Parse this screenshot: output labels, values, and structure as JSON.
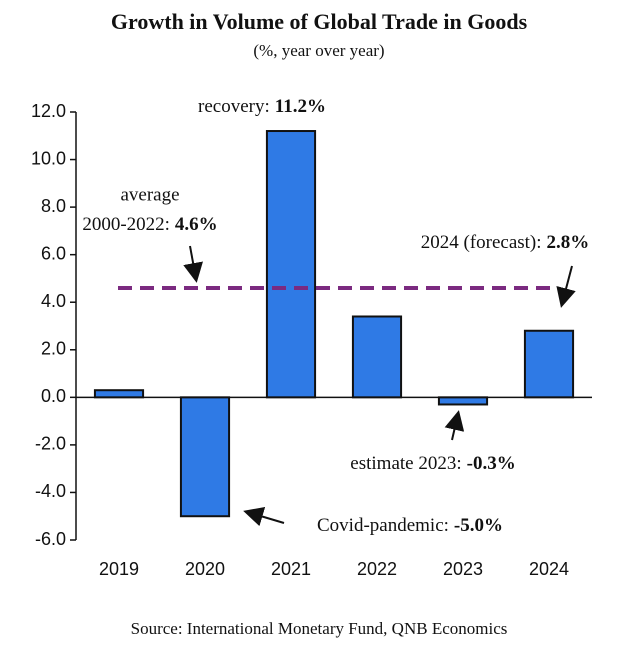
{
  "chart_data": {
    "type": "bar",
    "title": "Growth in Volume of Global Trade in Goods",
    "subtitle": "(%, year over year)",
    "source": "Source: International Monetary Fund, QNB Economics",
    "categories": [
      "2019",
      "2020",
      "2021",
      "2022",
      "2023",
      "2024"
    ],
    "values": [
      0.3,
      -5.0,
      11.2,
      3.4,
      -0.3,
      2.8
    ],
    "color": "#2f7ae5",
    "ylim": [
      -6,
      12
    ],
    "yticks": [
      {
        "value": -6,
        "label": "-6.0"
      },
      {
        "value": -4,
        "label": "-4.0"
      },
      {
        "value": -2,
        "label": "-2.0"
      },
      {
        "value": 0,
        "label": "0.0"
      },
      {
        "value": 2,
        "label": "2.0"
      },
      {
        "value": 4,
        "label": "4.0"
      },
      {
        "value": 6,
        "label": "6.0"
      },
      {
        "value": 8,
        "label": "8.0"
      },
      {
        "value": 10,
        "label": "10.0"
      },
      {
        "value": 12,
        "label": "12.0"
      }
    ],
    "average": {
      "value": 4.6,
      "text": [
        "average",
        "2000-2022:"
      ],
      "label": "4.6%",
      "color": "#7b2a80"
    },
    "annotations": [
      {
        "text": "recovery:",
        "label": "11.2%"
      },
      {
        "text": "2024 (forecast):",
        "label": "2.8%"
      },
      {
        "text": "estimate 2023:",
        "label": "-0.3%"
      },
      {
        "text": "Covid-pandemic:",
        "label": "-5.0%"
      }
    ]
  }
}
